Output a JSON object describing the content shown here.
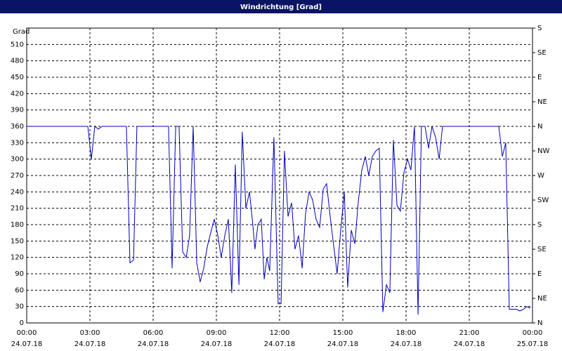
{
  "chart_data": {
    "type": "line",
    "title": "Windrichtung [Grad]",
    "ylabel": "Grad",
    "x": [
      0,
      2.9,
      3.07,
      3.23,
      3.4,
      3.57,
      4.73,
      4.9,
      5.07,
      5.23,
      6.73,
      6.9,
      7.07,
      7.23,
      7.4,
      7.57,
      7.73,
      7.9,
      8.07,
      8.23,
      8.4,
      8.57,
      8.73,
      8.9,
      9.07,
      9.23,
      9.4,
      9.57,
      9.73,
      9.9,
      10.07,
      10.23,
      10.4,
      10.57,
      10.73,
      10.83,
      10.97,
      11.13,
      11.27,
      11.4,
      11.53,
      11.73,
      11.93,
      12.07,
      12.23,
      12.4,
      12.57,
      12.73,
      12.9,
      13.07,
      13.23,
      13.4,
      13.57,
      13.73,
      13.9,
      14.07,
      14.23,
      14.4,
      14.57,
      14.73,
      14.9,
      15.07,
      15.23,
      15.4,
      15.57,
      15.73,
      15.9,
      16.07,
      16.23,
      16.4,
      16.57,
      16.73,
      16.9,
      17.07,
      17.23,
      17.4,
      17.57,
      17.73,
      17.9,
      18.07,
      18.23,
      18.4,
      18.57,
      18.73,
      18.9,
      19.07,
      19.23,
      19.4,
      19.57,
      19.73,
      22.4,
      22.57,
      22.73,
      22.9,
      23.23,
      23.4,
      23.57,
      23.73,
      23.9
    ],
    "series": [
      {
        "name": "Windrichtung",
        "color": "#0000c0",
        "values": [
          360,
          360,
          300,
          360,
          355,
          360,
          360,
          110,
          115,
          360,
          360,
          100,
          360,
          360,
          130,
          120,
          160,
          360,
          110,
          75,
          100,
          140,
          165,
          190,
          160,
          120,
          160,
          190,
          55,
          290,
          70,
          350,
          210,
          240,
          180,
          135,
          180,
          190,
          80,
          120,
          95,
          340,
          35,
          35,
          315,
          195,
          220,
          135,
          160,
          100,
          200,
          240,
          225,
          190,
          175,
          245,
          255,
          195,
          140,
          90,
          170,
          240,
          65,
          170,
          145,
          220,
          280,
          305,
          270,
          305,
          315,
          320,
          20,
          70,
          55,
          335,
          215,
          205,
          275,
          300,
          280,
          360,
          15,
          360,
          360,
          320,
          360,
          340,
          300,
          360,
          360,
          305,
          330,
          25,
          25,
          22,
          25,
          30,
          27
        ]
      }
    ],
    "xlim": [
      0,
      24
    ],
    "xticks": [
      {
        "value": 0,
        "label": "00:00"
      },
      {
        "value": 3,
        "label": "03:00"
      },
      {
        "value": 6,
        "label": "06:00"
      },
      {
        "value": 9,
        "label": "09:00"
      },
      {
        "value": 12,
        "label": "12:00"
      },
      {
        "value": 15,
        "label": "15:00"
      },
      {
        "value": 18,
        "label": "18:00"
      },
      {
        "value": 21,
        "label": "21:00"
      },
      {
        "value": 24,
        "label": "00:00"
      }
    ],
    "xtick_dates": [
      "24.07.18",
      "24.07.18",
      "24.07.18",
      "24.07.18",
      "24.07.18",
      "24.07.18",
      "24.07.18",
      "24.07.18",
      "25.07.18"
    ],
    "ylim": [
      0,
      540
    ],
    "yticks": [
      0,
      30,
      60,
      90,
      120,
      150,
      180,
      210,
      240,
      270,
      300,
      330,
      360,
      390,
      420,
      450,
      480,
      510
    ],
    "y2lim": [
      0,
      540
    ],
    "y2ticks": [
      {
        "value": 0,
        "label": "N"
      },
      {
        "value": 45,
        "label": "NE"
      },
      {
        "value": 90,
        "label": "E"
      },
      {
        "value": 135,
        "label": "SE"
      },
      {
        "value": 180,
        "label": "S"
      },
      {
        "value": 225,
        "label": "SW"
      },
      {
        "value": 270,
        "label": "W"
      },
      {
        "value": 315,
        "label": "NW"
      },
      {
        "value": 360,
        "label": "N"
      },
      {
        "value": 405,
        "label": "NE"
      },
      {
        "value": 450,
        "label": "E"
      },
      {
        "value": 495,
        "label": "SE"
      },
      {
        "value": 540,
        "label": "S"
      }
    ],
    "grid": true
  }
}
